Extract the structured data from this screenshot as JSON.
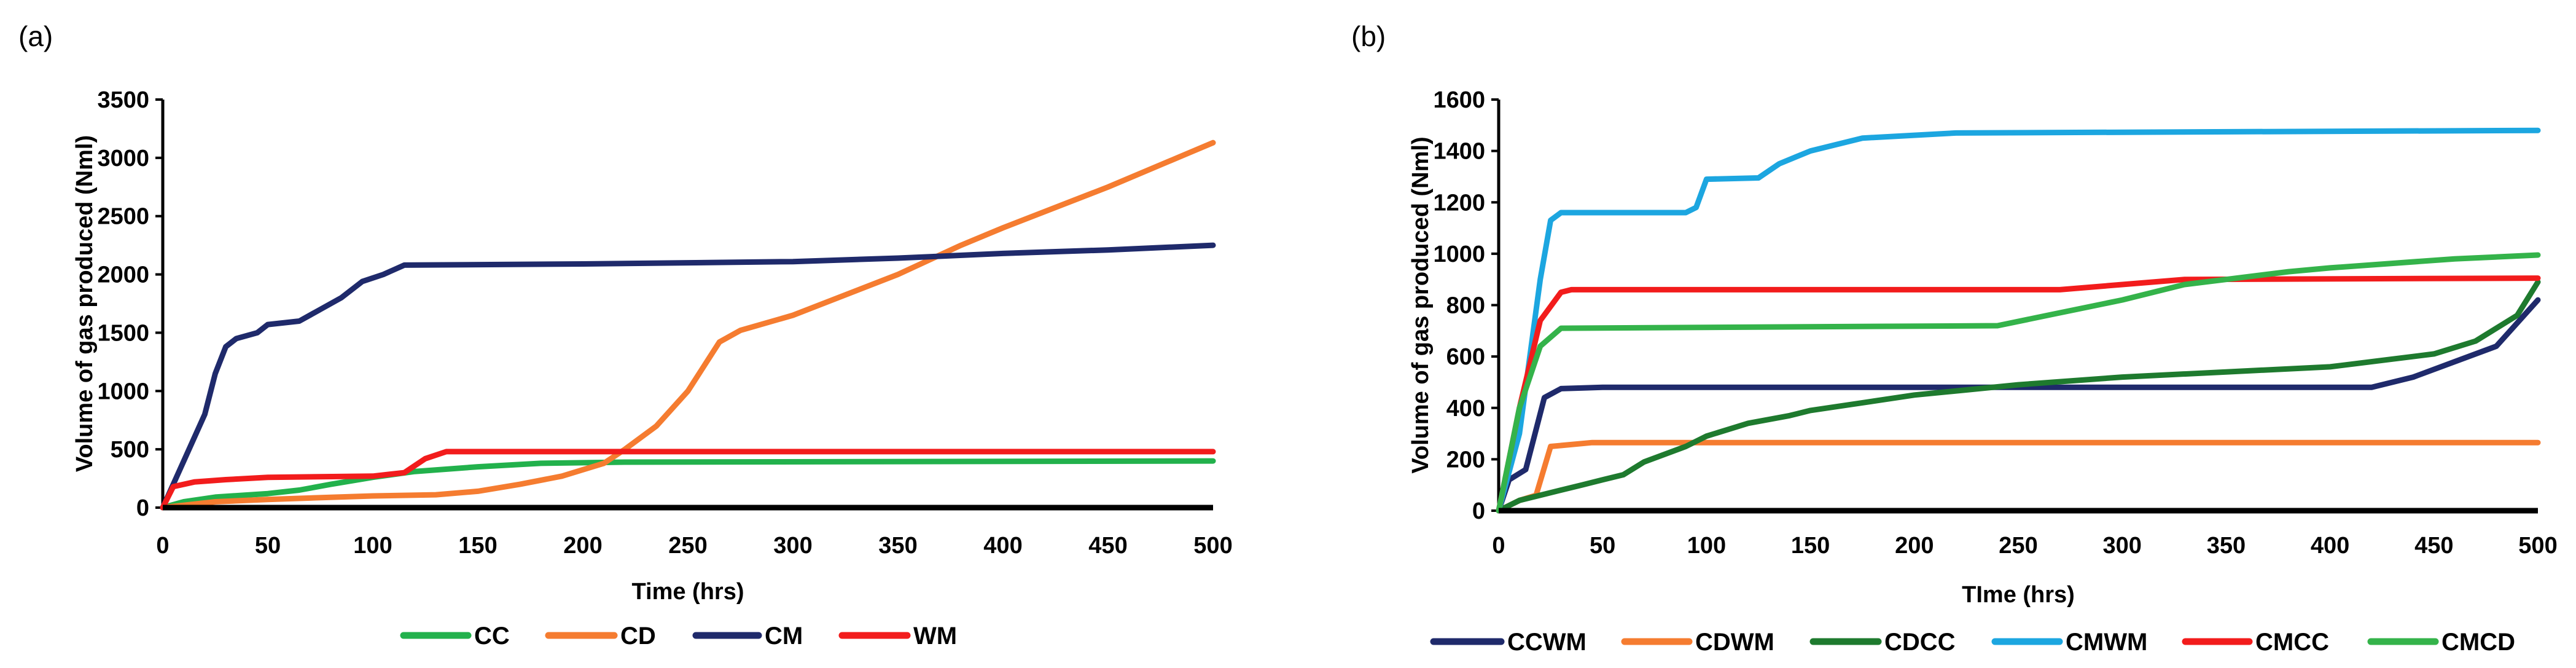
{
  "chart_data": [
    {
      "type": "line",
      "panel_label": "(a)",
      "xlabel": "Time (hrs)",
      "ylabel": "Volume of gas produced  (Nml)",
      "xlim": [
        0,
        500
      ],
      "ylim": [
        0,
        3500
      ],
      "xticks": [
        0,
        50,
        100,
        150,
        200,
        250,
        300,
        350,
        400,
        450,
        500
      ],
      "yticks": [
        0,
        500,
        1000,
        1500,
        2000,
        2500,
        3000,
        3500
      ],
      "grid": false,
      "legend_position": "bottom",
      "series": [
        {
          "name": "CC",
          "color": "#22B14C",
          "points": [
            [
              0,
              0
            ],
            [
              10,
              50
            ],
            [
              25,
              90
            ],
            [
              50,
              120
            ],
            [
              65,
              150
            ],
            [
              80,
              200
            ],
            [
              100,
              260
            ],
            [
              120,
              310
            ],
            [
              150,
              350
            ],
            [
              180,
              380
            ],
            [
              220,
              390
            ],
            [
              500,
              400
            ]
          ]
        },
        {
          "name": "CD",
          "color": "#F57C30",
          "points": [
            [
              0,
              0
            ],
            [
              25,
              50
            ],
            [
              50,
              70
            ],
            [
              100,
              100
            ],
            [
              130,
              110
            ],
            [
              150,
              140
            ],
            [
              170,
              200
            ],
            [
              190,
              270
            ],
            [
              210,
              380
            ],
            [
              220,
              500
            ],
            [
              235,
              700
            ],
            [
              250,
              1000
            ],
            [
              265,
              1420
            ],
            [
              275,
              1520
            ],
            [
              300,
              1650
            ],
            [
              350,
              2000
            ],
            [
              380,
              2250
            ],
            [
              400,
              2400
            ],
            [
              450,
              2750
            ],
            [
              500,
              3130
            ]
          ]
        },
        {
          "name": "CM",
          "color": "#1F2A6B",
          "points": [
            [
              0,
              0
            ],
            [
              10,
              400
            ],
            [
              20,
              800
            ],
            [
              25,
              1150
            ],
            [
              30,
              1380
            ],
            [
              35,
              1450
            ],
            [
              45,
              1500
            ],
            [
              50,
              1570
            ],
            [
              65,
              1600
            ],
            [
              75,
              1700
            ],
            [
              85,
              1800
            ],
            [
              95,
              1940
            ],
            [
              105,
              2000
            ],
            [
              115,
              2080
            ],
            [
              200,
              2090
            ],
            [
              300,
              2110
            ],
            [
              350,
              2140
            ],
            [
              400,
              2180
            ],
            [
              450,
              2210
            ],
            [
              500,
              2250
            ]
          ]
        },
        {
          "name": "WM",
          "color": "#F21C1C",
          "points": [
            [
              0,
              0
            ],
            [
              5,
              180
            ],
            [
              15,
              220
            ],
            [
              30,
              240
            ],
            [
              50,
              260
            ],
            [
              100,
              270
            ],
            [
              115,
              300
            ],
            [
              125,
              420
            ],
            [
              135,
              480
            ],
            [
              500,
              480
            ]
          ]
        }
      ]
    },
    {
      "type": "line",
      "panel_label": "(b)",
      "xlabel": "TIme (hrs)",
      "ylabel": "Volume of gas produced (Nml)",
      "xlim": [
        0,
        500
      ],
      "ylim": [
        0,
        1600
      ],
      "xticks": [
        0,
        50,
        100,
        150,
        200,
        250,
        300,
        350,
        400,
        450,
        500
      ],
      "yticks": [
        0,
        200,
        400,
        600,
        800,
        1000,
        1200,
        1400,
        1600
      ],
      "grid": false,
      "legend_position": "bottom",
      "series": [
        {
          "name": "CCWM",
          "color": "#1F2A6B",
          "points": [
            [
              0,
              0
            ],
            [
              5,
              120
            ],
            [
              13,
              160
            ],
            [
              22,
              440
            ],
            [
              30,
              475
            ],
            [
              50,
              480
            ],
            [
              420,
              480
            ],
            [
              440,
              520
            ],
            [
              460,
              580
            ],
            [
              480,
              640
            ],
            [
              500,
              820
            ]
          ]
        },
        {
          "name": "CDWM",
          "color": "#F57C30",
          "points": [
            [
              0,
              0
            ],
            [
              10,
              40
            ],
            [
              18,
              60
            ],
            [
              25,
              250
            ],
            [
              45,
              265
            ],
            [
              500,
              265
            ]
          ]
        },
        {
          "name": "CDCC",
          "color": "#1E7A2E",
          "points": [
            [
              0,
              0
            ],
            [
              10,
              40
            ],
            [
              20,
              60
            ],
            [
              30,
              80
            ],
            [
              40,
              100
            ],
            [
              50,
              120
            ],
            [
              60,
              140
            ],
            [
              70,
              190
            ],
            [
              90,
              250
            ],
            [
              100,
              290
            ],
            [
              120,
              340
            ],
            [
              140,
              370
            ],
            [
              150,
              390
            ],
            [
              175,
              420
            ],
            [
              200,
              450
            ],
            [
              225,
              470
            ],
            [
              250,
              490
            ],
            [
              300,
              520
            ],
            [
              350,
              540
            ],
            [
              400,
              560
            ],
            [
              430,
              590
            ],
            [
              450,
              610
            ],
            [
              470,
              660
            ],
            [
              490,
              760
            ],
            [
              500,
              890
            ]
          ]
        },
        {
          "name": "CMWM",
          "color": "#1CA6E0",
          "points": [
            [
              0,
              0
            ],
            [
              10,
              300
            ],
            [
              20,
              900
            ],
            [
              25,
              1130
            ],
            [
              30,
              1160
            ],
            [
              90,
              1160
            ],
            [
              95,
              1180
            ],
            [
              100,
              1290
            ],
            [
              125,
              1295
            ],
            [
              135,
              1350
            ],
            [
              150,
              1400
            ],
            [
              175,
              1450
            ],
            [
              220,
              1470
            ],
            [
              500,
              1480
            ]
          ]
        },
        {
          "name": "CMCC",
          "color": "#F21C1C",
          "points": [
            [
              0,
              0
            ],
            [
              10,
              400
            ],
            [
              20,
              740
            ],
            [
              30,
              850
            ],
            [
              35,
              860
            ],
            [
              270,
              860
            ],
            [
              300,
              880
            ],
            [
              330,
              900
            ],
            [
              500,
              905
            ]
          ]
        },
        {
          "name": "CMCD",
          "color": "#34B34A",
          "points": [
            [
              0,
              0
            ],
            [
              10,
              400
            ],
            [
              20,
              640
            ],
            [
              30,
              710
            ],
            [
              240,
              720
            ],
            [
              270,
              770
            ],
            [
              300,
              820
            ],
            [
              330,
              880
            ],
            [
              350,
              900
            ],
            [
              380,
              930
            ],
            [
              400,
              945
            ],
            [
              460,
              980
            ],
            [
              500,
              995
            ]
          ]
        }
      ]
    }
  ]
}
